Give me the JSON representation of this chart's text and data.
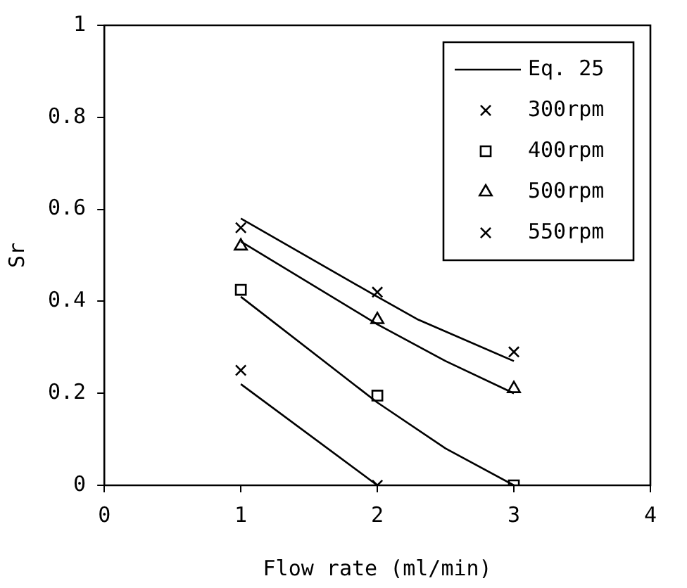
{
  "chart_data": {
    "type": "scatter",
    "xlabel": "Flow rate (ml/min)",
    "ylabel": "Sr",
    "xlim": [
      0,
      4
    ],
    "xticks": [
      0,
      1,
      2,
      3,
      4
    ],
    "ylim": [
      0,
      1
    ],
    "yticks": [
      0,
      0.2,
      0.4,
      0.6,
      0.8,
      1
    ],
    "grid": false,
    "legend": "top right",
    "series": [
      {
        "name": "Eq. 25",
        "type": "line",
        "marker": "none",
        "line_style": "solid",
        "color": "#000000",
        "x": [
          1,
          2
        ],
        "values": [
          0.22,
          0
        ]
      },
      {
        "type": "line",
        "marker": "none",
        "line_style": "solid",
        "color": "#000000",
        "x": [
          1,
          2,
          2.5,
          3
        ],
        "values": [
          0.41,
          0.18,
          0.08,
          0
        ]
      },
      {
        "type": "line",
        "marker": "none",
        "line_style": "solid",
        "color": "#000000",
        "x": [
          1,
          2,
          2.5,
          3
        ],
        "values": [
          0.53,
          0.35,
          0.27,
          0.2
        ]
      },
      {
        "type": "line",
        "marker": "none",
        "line_style": "solid",
        "color": "#000000",
        "x": [
          1,
          2,
          2.3,
          3
        ],
        "values": [
          0.58,
          0.41,
          0.36,
          0.27
        ]
      },
      {
        "name": "300rpm",
        "type": "scatter",
        "marker": "cross",
        "color": "#000000",
        "x": [
          1,
          2
        ],
        "values": [
          0.25,
          0
        ]
      },
      {
        "name": "400rpm",
        "type": "scatter",
        "marker": "square",
        "color": "#000000",
        "x": [
          1,
          2,
          3
        ],
        "values": [
          0.425,
          0.195,
          0
        ]
      },
      {
        "name": "500rpm",
        "type": "scatter",
        "marker": "triangle",
        "color": "#000000",
        "x": [
          1,
          2,
          3
        ],
        "values": [
          0.52,
          0.36,
          0.21
        ]
      },
      {
        "name": "550rpm",
        "type": "scatter",
        "marker": "cross",
        "color": "#000000",
        "x": [
          1,
          2,
          3
        ],
        "values": [
          0.56,
          0.42,
          0.29
        ]
      }
    ]
  }
}
